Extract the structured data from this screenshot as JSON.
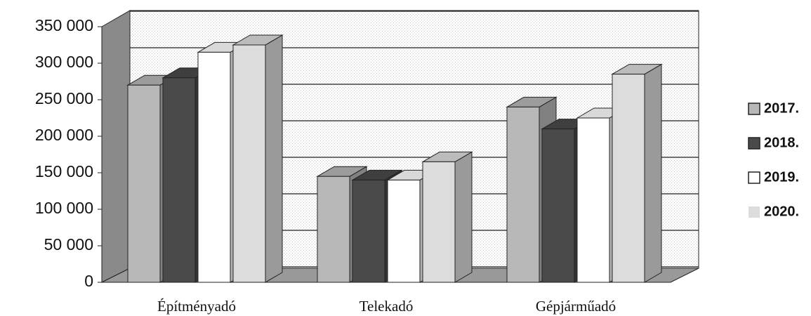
{
  "chart_data": {
    "type": "bar3d",
    "categories": [
      "Építményadó",
      "Telekadó",
      "Gépjárműadó"
    ],
    "series": [
      {
        "name": "2017.",
        "color": "#b8b8b8",
        "values": [
          270000,
          145000,
          240000
        ]
      },
      {
        "name": "2018.",
        "color": "#4a4a4a",
        "values": [
          280000,
          140000,
          210000
        ]
      },
      {
        "name": "2019.",
        "color": "#ffffff",
        "values": [
          315000,
          140000,
          225000
        ]
      },
      {
        "name": "2020.",
        "color": "#dcdcdc",
        "values": [
          325000,
          165000,
          285000
        ]
      }
    ],
    "ylim": [
      0,
      350000
    ],
    "yticks": [
      0,
      {
        "value": 50000,
        "label": "50 000"
      },
      {
        "value": 100000,
        "label": "100 000"
      },
      {
        "value": 150000,
        "label": "150 000"
      },
      {
        "value": 200000,
        "label": "200 000"
      },
      {
        "value": 250000,
        "label": "250 000"
      },
      {
        "value": 300000,
        "label": "300 000"
      },
      {
        "value": 350000,
        "label": "350 000"
      }
    ],
    "grid": true,
    "legend": "right"
  }
}
